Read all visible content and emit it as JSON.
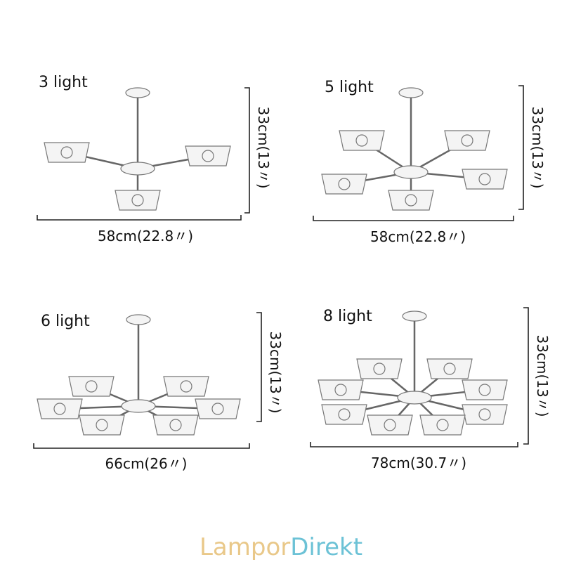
{
  "panels": [
    {
      "label": "3 light",
      "width": "58cm(22.8〃)",
      "height": "33cm(13〃)"
    },
    {
      "label": "5 light",
      "width": "58cm(22.8〃)",
      "height": "33cm(13〃)"
    },
    {
      "label": "6 light",
      "width": "66cm(26〃)",
      "height": "33cm(13〃)"
    },
    {
      "label": "8 light",
      "width": "78cm(30.7〃)",
      "height": "33cm(13〃)"
    }
  ],
  "brand": {
    "part1": "Lampor",
    "part2": "Direkt"
  }
}
